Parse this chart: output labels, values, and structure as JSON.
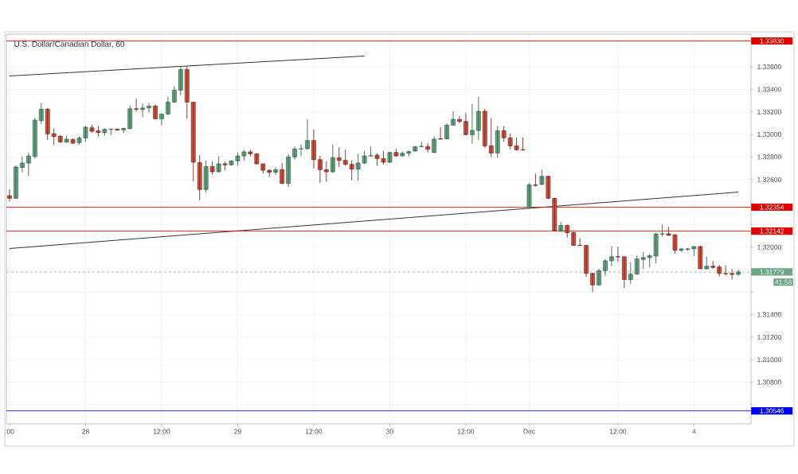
{
  "chart_data": {
    "type": "candlestick",
    "title": "U.S. Dollar/Canadian Dollar, 60",
    "categories": [
      ":00",
      null,
      null,
      null,
      null,
      null,
      null,
      null,
      null,
      null,
      null,
      null,
      "28",
      null,
      null,
      null,
      null,
      null,
      null,
      null,
      null,
      null,
      null,
      null,
      "12:00",
      null,
      null,
      null,
      null,
      null,
      null,
      null,
      null,
      null,
      null,
      null,
      "29",
      null,
      null,
      null,
      null,
      null,
      null,
      null,
      null,
      null,
      null,
      null,
      "12:00",
      null,
      null,
      null,
      null,
      null,
      null,
      null,
      null,
      null,
      null,
      null,
      "30",
      null,
      null,
      null,
      null,
      null,
      null,
      null,
      null,
      null,
      null,
      null,
      "12:00",
      null,
      null,
      null,
      null,
      null,
      null,
      null,
      null,
      null,
      "Dec",
      null,
      null,
      null,
      null,
      null,
      null,
      null,
      null,
      null,
      null,
      null,
      null,
      null,
      "12:00",
      null,
      null,
      null,
      null,
      null,
      null,
      null,
      null,
      null,
      null,
      null,
      "4",
      null,
      null,
      null,
      null,
      null,
      null,
      null
    ],
    "ohlc": [
      [
        1.32456,
        1.32511,
        1.32405,
        1.32433
      ],
      [
        1.32433,
        1.32722,
        1.32428,
        1.32711
      ],
      [
        1.32706,
        1.32805,
        1.32664,
        1.32746
      ],
      [
        1.32746,
        1.3284,
        1.32628,
        1.32809
      ],
      [
        1.32805,
        1.33146,
        1.32786,
        1.33127
      ],
      [
        1.33122,
        1.33282,
        1.33092,
        1.33224
      ],
      [
        1.33224,
        1.33235,
        1.32951,
        1.33005
      ],
      [
        1.33007,
        1.33052,
        1.32904,
        1.32981
      ],
      [
        1.32984,
        1.32993,
        1.32922,
        1.32934
      ],
      [
        1.32932,
        1.32988,
        1.32927,
        1.32958
      ],
      [
        1.32955,
        1.32965,
        1.32918,
        1.32922
      ],
      [
        1.32927,
        1.32981,
        1.32911,
        1.32969
      ],
      [
        1.32969,
        1.33075,
        1.32934,
        1.33064
      ],
      [
        1.33059,
        1.33087,
        1.33016,
        1.33028
      ],
      [
        1.33033,
        1.33075,
        1.32981,
        1.33016
      ],
      [
        1.33016,
        1.33052,
        1.32988,
        1.33045
      ],
      [
        1.33045,
        1.33052,
        1.32998,
        1.33047
      ],
      [
        1.33047,
        1.33052,
        1.33035,
        1.33038
      ],
      [
        1.3304,
        1.33059,
        1.3301,
        1.33054
      ],
      [
        1.33052,
        1.33256,
        1.33045,
        1.33228
      ],
      [
        1.33228,
        1.33318,
        1.33205,
        1.33224
      ],
      [
        1.33221,
        1.33275,
        1.33153,
        1.33235
      ],
      [
        1.33235,
        1.3328,
        1.33193,
        1.33252
      ],
      [
        1.33252,
        1.33264,
        1.33134,
        1.33139
      ],
      [
        1.33139,
        1.33181,
        1.33082,
        1.33181
      ],
      [
        1.33181,
        1.33334,
        1.33174,
        1.33287
      ],
      [
        1.33287,
        1.33428,
        1.3328,
        1.33393
      ],
      [
        1.33393,
        1.33605,
        1.33346,
        1.33576
      ],
      [
        1.33576,
        1.33605,
        1.33139,
        1.33287
      ],
      [
        1.33287,
        1.33287,
        1.32581,
        1.32753
      ],
      [
        1.3275,
        1.32816,
        1.32416,
        1.32511
      ],
      [
        1.32511,
        1.3277,
        1.32482,
        1.32715
      ],
      [
        1.32715,
        1.32762,
        1.32645,
        1.32668
      ],
      [
        1.32668,
        1.32805,
        1.32664,
        1.32739
      ],
      [
        1.32739,
        1.32758,
        1.32682,
        1.3273
      ],
      [
        1.3273,
        1.3277,
        1.32722,
        1.32765
      ],
      [
        1.32765,
        1.3284,
        1.32722,
        1.32809
      ],
      [
        1.32809,
        1.32864,
        1.3277,
        1.32845
      ],
      [
        1.32845,
        1.32864,
        1.32805,
        1.32828
      ],
      [
        1.32828,
        1.32833,
        1.32734,
        1.32739
      ],
      [
        1.32739,
        1.32739,
        1.32652,
        1.32682
      ],
      [
        1.32682,
        1.32687,
        1.32621,
        1.32664
      ],
      [
        1.32664,
        1.3271,
        1.3264,
        1.32687
      ],
      [
        1.32687,
        1.32746,
        1.32558,
        1.32565
      ],
      [
        1.32565,
        1.32824,
        1.32534,
        1.328
      ],
      [
        1.328,
        1.32892,
        1.32776,
        1.32871
      ],
      [
        1.32871,
        1.3291,
        1.32805,
        1.32873
      ],
      [
        1.32873,
        1.33134,
        1.32864,
        1.32946
      ],
      [
        1.32946,
        1.33045,
        1.32699,
        1.32776
      ],
      [
        1.32776,
        1.32809,
        1.32569,
        1.32687
      ],
      [
        1.32687,
        1.32762,
        1.32581,
        1.32668
      ],
      [
        1.32668,
        1.3291,
        1.32659,
        1.32793
      ],
      [
        1.32793,
        1.32887,
        1.3271,
        1.32769
      ],
      [
        1.32769,
        1.32864,
        1.32722,
        1.32734
      ],
      [
        1.32734,
        1.3277,
        1.32593,
        1.32692
      ],
      [
        1.32692,
        1.32828,
        1.32588,
        1.32746
      ],
      [
        1.32746,
        1.32856,
        1.32734,
        1.32809
      ],
      [
        1.32809,
        1.32892,
        1.32805,
        1.32811
      ],
      [
        1.32816,
        1.32833,
        1.32722,
        1.32786
      ],
      [
        1.32786,
        1.32852,
        1.32734,
        1.32753
      ],
      [
        1.32753,
        1.32845,
        1.32746,
        1.3284
      ],
      [
        1.3284,
        1.32875,
        1.32805,
        1.32809
      ],
      [
        1.32809,
        1.32847,
        1.32805,
        1.32833
      ],
      [
        1.32833,
        1.32856,
        1.32805,
        1.32847
      ],
      [
        1.32852,
        1.32894,
        1.32847,
        1.32892
      ],
      [
        1.32892,
        1.32934,
        1.32887,
        1.32894
      ],
      [
        1.32892,
        1.32922,
        1.3284,
        1.32868
      ],
      [
        1.3284,
        1.32981,
        1.32835,
        1.32958
      ],
      [
        1.3296,
        1.33064,
        1.32955,
        1.32958
      ],
      [
        1.3296,
        1.33099,
        1.32958,
        1.33082
      ],
      [
        1.33082,
        1.33205,
        1.33082,
        1.33134
      ],
      [
        1.33134,
        1.33162,
        1.33099,
        1.33115
      ],
      [
        1.33115,
        1.33193,
        1.32993,
        1.32998
      ],
      [
        1.32998,
        1.33271,
        1.32918,
        1.33035
      ],
      [
        1.33035,
        1.33334,
        1.32951,
        1.33205
      ],
      [
        1.33205,
        1.33228,
        1.3288,
        1.32899
      ],
      [
        1.32899,
        1.33146,
        1.328,
        1.32835
      ],
      [
        1.32835,
        1.33075,
        1.32793,
        1.33033
      ],
      [
        1.33033,
        1.33075,
        1.32934,
        1.3297
      ],
      [
        1.3297,
        1.33009,
        1.32868,
        1.32899
      ],
      [
        1.32899,
        1.32974,
        1.32856,
        1.32864
      ],
      [
        1.32864,
        1.32974,
        1.32856,
        1.32862
      ],
      [
        1.32347,
        1.32568,
        1.32342,
        1.32552
      ],
      [
        1.32552,
        1.32652,
        1.32537,
        1.32547
      ],
      [
        1.32556,
        1.32687,
        1.32552,
        1.32628
      ],
      [
        1.32628,
        1.32632,
        1.32425,
        1.32433
      ],
      [
        1.32433,
        1.32437,
        1.32145,
        1.32145
      ],
      [
        1.32145,
        1.32223,
        1.32133,
        1.32192
      ],
      [
        1.32192,
        1.322,
        1.32085,
        1.32128
      ],
      [
        1.32128,
        1.3214,
        1.32014,
        1.32016
      ],
      [
        1.32016,
        1.3208,
        1.32012,
        1.32014
      ],
      [
        1.32014,
        1.32021,
        1.31735,
        1.31766
      ],
      [
        1.31766,
        1.31771,
        1.316,
        1.31664
      ],
      [
        1.31664,
        1.31807,
        1.31659,
        1.3179
      ],
      [
        1.3179,
        1.31895,
        1.31742,
        1.31878
      ],
      [
        1.31878,
        1.32009,
        1.3183,
        1.31914
      ],
      [
        1.31914,
        1.32002,
        1.31871,
        1.31912
      ],
      [
        1.31914,
        1.31914,
        1.31635,
        1.31711
      ],
      [
        1.31711,
        1.31866,
        1.31671,
        1.31759
      ],
      [
        1.31759,
        1.31926,
        1.31754,
        1.31895
      ],
      [
        1.3189,
        1.31957,
        1.31807,
        1.31907
      ],
      [
        1.31907,
        1.31938,
        1.31818,
        1.31923
      ],
      [
        1.31921,
        1.32128,
        1.31854,
        1.32116
      ],
      [
        1.32116,
        1.322,
        1.32092,
        1.32118
      ],
      [
        1.32118,
        1.3218,
        1.321,
        1.32104
      ],
      [
        1.32109,
        1.32114,
        1.31942,
        1.31971
      ],
      [
        1.31971,
        1.3199,
        1.31957,
        1.31983
      ],
      [
        1.31983,
        1.3199,
        1.31966,
        1.31981
      ],
      [
        1.31985,
        1.32009,
        1.31919,
        1.32004
      ],
      [
        1.32004,
        1.32014,
        1.31807,
        1.31807
      ],
      [
        1.31807,
        1.31914,
        1.31802,
        1.3183
      ],
      [
        1.3183,
        1.31878,
        1.31807,
        1.31819
      ],
      [
        1.31823,
        1.31842,
        1.3174,
        1.31766
      ],
      [
        1.31766,
        1.31838,
        1.31747,
        1.31764
      ],
      [
        1.31766,
        1.31807,
        1.31711,
        1.31757
      ],
      [
        1.31757,
        1.318,
        1.31747,
        1.31779
      ]
    ],
    "series": [
      {
        "type": "line",
        "color": "#000000",
        "values": [
          1.33519,
          null,
          null,
          null,
          null,
          null,
          null,
          null,
          null,
          null,
          null,
          null,
          null,
          null,
          null,
          null,
          null,
          null,
          null,
          null,
          null,
          null,
          null,
          null,
          null,
          null,
          null,
          null,
          null,
          null,
          null,
          null,
          null,
          null,
          null,
          null,
          null,
          null,
          null,
          null,
          null,
          null,
          null,
          null,
          null,
          null,
          null,
          null,
          null,
          null,
          null,
          null,
          null,
          null,
          null,
          null,
          1.33696,
          null,
          null,
          null,
          null,
          null,
          null,
          null,
          null,
          null,
          null,
          null,
          null,
          null,
          null,
          null,
          null,
          null,
          null,
          null,
          null,
          null,
          null,
          null,
          null,
          null,
          null,
          null,
          null,
          null,
          null,
          null,
          null,
          null,
          null,
          null,
          null,
          null,
          null,
          null,
          null,
          null,
          null,
          null,
          null,
          null,
          null,
          null,
          null,
          null,
          null,
          null,
          null,
          null,
          null,
          null,
          null,
          null,
          null,
          null
        ]
      },
      {
        "type": "line",
        "color": "#000000",
        "values": [
          1.31987,
          null,
          null,
          null,
          null,
          null,
          null,
          null,
          null,
          null,
          null,
          null,
          null,
          null,
          null,
          null,
          null,
          null,
          null,
          null,
          null,
          null,
          null,
          null,
          null,
          null,
          null,
          null,
          null,
          null,
          null,
          null,
          null,
          null,
          null,
          null,
          null,
          null,
          null,
          null,
          null,
          null,
          null,
          null,
          null,
          null,
          null,
          null,
          null,
          null,
          null,
          null,
          null,
          null,
          null,
          null,
          null,
          null,
          null,
          null,
          null,
          null,
          null,
          null,
          null,
          null,
          null,
          null,
          null,
          null,
          null,
          null,
          null,
          null,
          null,
          null,
          null,
          null,
          null,
          null,
          null,
          null,
          null,
          null,
          null,
          null,
          null,
          null,
          null,
          null,
          null,
          null,
          null,
          null,
          null,
          null,
          null,
          null,
          null,
          null,
          null,
          null,
          null,
          null,
          null,
          null,
          null,
          null,
          null,
          null,
          null,
          null,
          null,
          null,
          null,
          1.32488
        ]
      }
    ],
    "ylim": [
      1.3043,
      1.3389
    ],
    "yticks": [
      {
        "value": 1.306,
        "label": null
      },
      {
        "value": 1.308,
        "label": "1.30800"
      },
      {
        "value": 1.31,
        "label": "1.31000"
      },
      {
        "value": 1.312,
        "label": "1.31200"
      },
      {
        "value": 1.314,
        "label": "1.31400"
      },
      {
        "value": 1.316,
        "label": null
      },
      {
        "value": 1.318,
        "label": null
      },
      {
        "value": 1.32,
        "label": "1.32000"
      },
      {
        "value": 1.322,
        "label": null
      },
      {
        "value": 1.324,
        "label": null
      },
      {
        "value": 1.326,
        "label": "1.32600"
      },
      {
        "value": 1.328,
        "label": "1.32800"
      },
      {
        "value": 1.33,
        "label": "1.33000"
      },
      {
        "value": 1.332,
        "label": "1.33200"
      },
      {
        "value": 1.334,
        "label": "1.33400"
      },
      {
        "value": 1.336,
        "label": "1.33600"
      }
    ],
    "ref_lines": [
      {
        "axis": "y",
        "value": 1.3383,
        "label": "1.33830",
        "color": "#e00000"
      },
      {
        "axis": "y",
        "value": 1.32354,
        "label": "1.32354",
        "color": "#e00000"
      },
      {
        "axis": "y",
        "value": 1.32142,
        "label": "1.32142",
        "color": "#e00000"
      },
      {
        "axis": "y",
        "value": 1.31779,
        "label": "1.31779",
        "color": "#6ba583",
        "line_style": "dashed"
      },
      {
        "axis": "y",
        "value": 1.30546,
        "label": "1.30546",
        "color": "#0000ee"
      }
    ],
    "annotations": [
      "41:58"
    ],
    "grid": true
  }
}
